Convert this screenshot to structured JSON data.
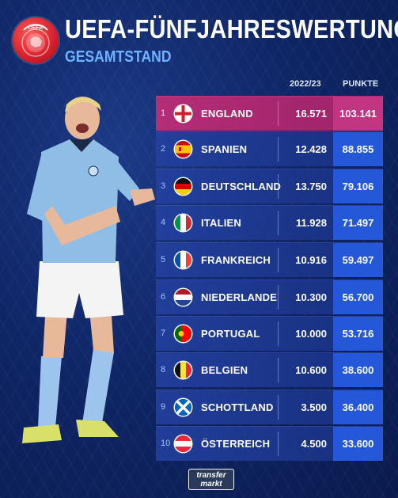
{
  "header": {
    "title": "UEFA-FÜNFJAHRESWERTUNG",
    "subtitle": "GESAMTSTAND"
  },
  "columns": {
    "season": "2022/23",
    "points": "PUNKTE"
  },
  "rows": [
    {
      "rank": "1",
      "country": "ENGLAND",
      "season": "16.571",
      "points": "103.141",
      "flag_icon": "england-flag-icon"
    },
    {
      "rank": "2",
      "country": "SPANIEN",
      "season": "12.428",
      "points": "88.855",
      "flag_icon": "spain-flag-icon"
    },
    {
      "rank": "3",
      "country": "DEUTSCHLAND",
      "season": "13.750",
      "points": "79.106",
      "flag_icon": "germany-flag-icon"
    },
    {
      "rank": "4",
      "country": "ITALIEN",
      "season": "11.928",
      "points": "71.497",
      "flag_icon": "italy-flag-icon"
    },
    {
      "rank": "5",
      "country": "FRANKREICH",
      "season": "10.916",
      "points": "59.497",
      "flag_icon": "france-flag-icon"
    },
    {
      "rank": "6",
      "country": "NIEDERLANDE",
      "season": "10.300",
      "points": "56.700",
      "flag_icon": "netherlands-flag-icon"
    },
    {
      "rank": "7",
      "country": "PORTUGAL",
      "season": "10.000",
      "points": "53.716",
      "flag_icon": "portugal-flag-icon"
    },
    {
      "rank": "8",
      "country": "BELGIEN",
      "season": "10.600",
      "points": "38.600",
      "flag_icon": "belgium-flag-icon"
    },
    {
      "rank": "9",
      "country": "SCHOTTLAND",
      "season": "3.500",
      "points": "36.400",
      "flag_icon": "scotland-flag-icon"
    },
    {
      "rank": "10",
      "country": "ÖSTERREICH",
      "season": "4.500",
      "points": "33.600",
      "flag_icon": "austria-flag-icon"
    }
  ],
  "branding": {
    "line1": "transfer",
    "line2": "markt"
  },
  "colors": {
    "background": "#0f2666",
    "highlight_row": "#b52d77",
    "points_cell": "#2458d8",
    "subtitle": "#6fb2ff"
  }
}
